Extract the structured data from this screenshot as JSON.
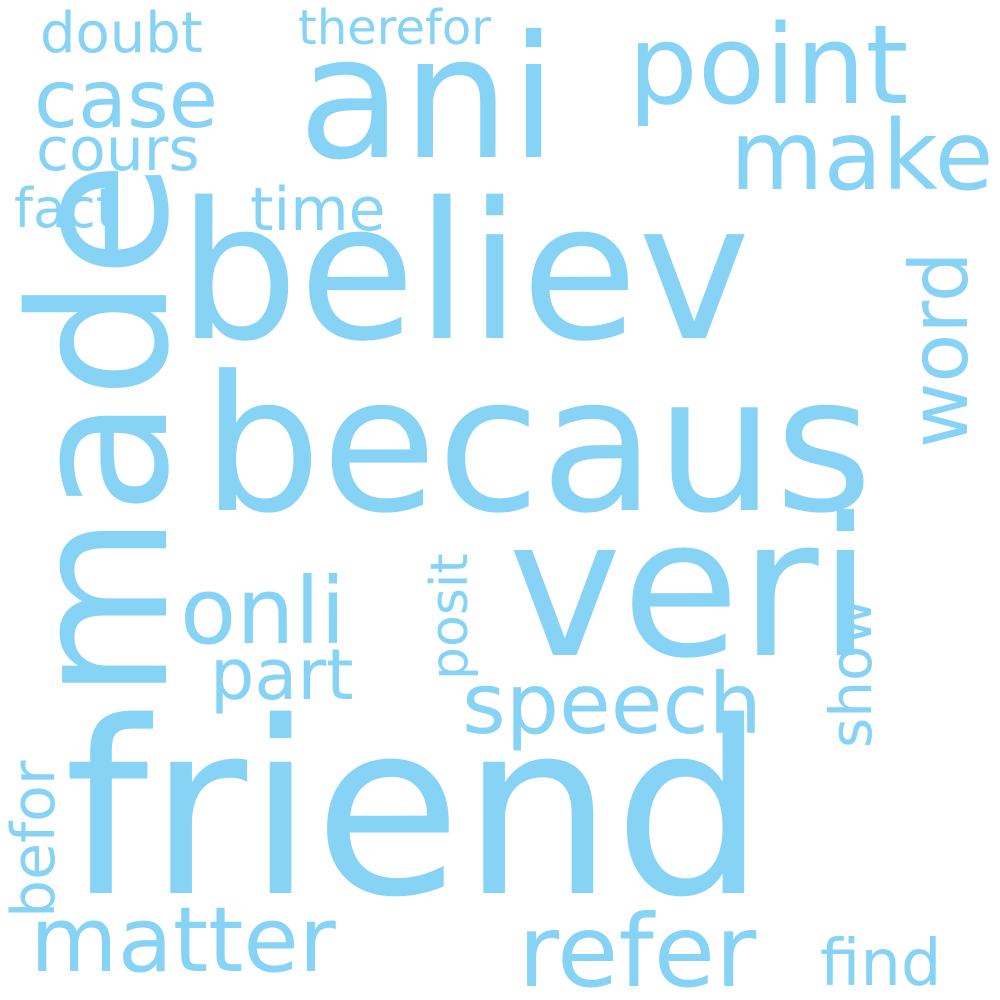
{
  "color": "#87d3f5",
  "words": {
    "friend": "friend",
    "believ": "believ",
    "becaus": "becaus",
    "veri": "veri",
    "made": "made",
    "ani": "ani",
    "point": "point",
    "matter": "matter",
    "refer": "refer",
    "speech": "speech",
    "onli": "onli",
    "part": "part",
    "make": "make",
    "case": "case",
    "cours": "cours",
    "doubt": "doubt",
    "therefor": "therefor",
    "fact": "fact",
    "time": "time",
    "word": "word",
    "posit": "posit",
    "show": "show",
    "befor": "befor",
    "find": "find"
  }
}
